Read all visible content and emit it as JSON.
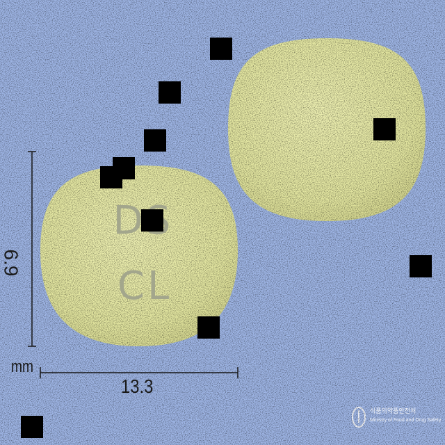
{
  "scene": {
    "background_color": "#9fb6e6",
    "tablet_color": "#eaeca8",
    "imprint": {
      "line1": "DS",
      "line2": "CL"
    },
    "dimensions": {
      "unit": "mm",
      "width": "13.3",
      "height": "6.9"
    },
    "watermark": {
      "line1": "식품의약품안전처",
      "line2": "Ministry of Food and Drug Safety"
    }
  }
}
